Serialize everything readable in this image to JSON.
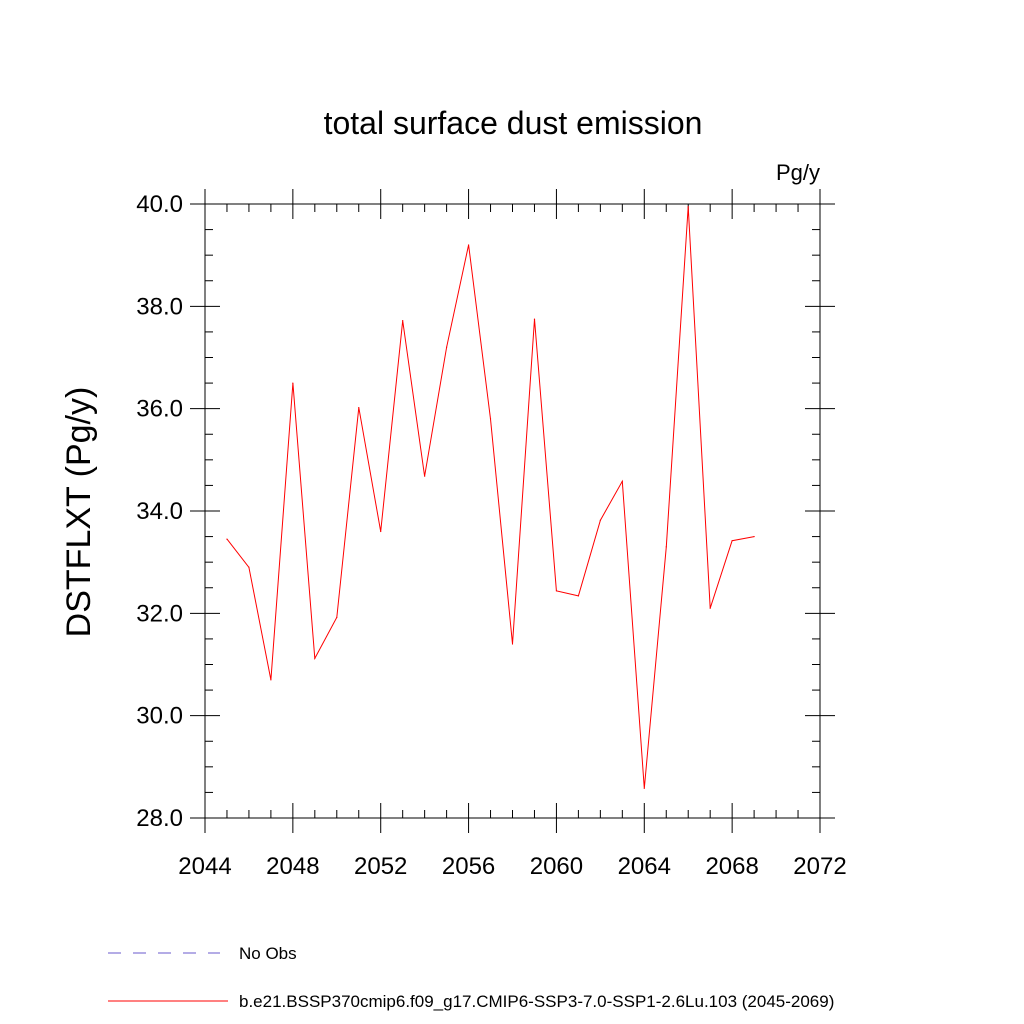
{
  "chart_data": {
    "type": "line",
    "title": "total surface dust emission",
    "units_label": "Pg/y",
    "ylabel": "DSTFLXT  (Pg/y)",
    "xlabel": "",
    "xlim": [
      2044,
      2072
    ],
    "ylim": [
      28.0,
      40.0
    ],
    "x_ticks": [
      2044,
      2048,
      2052,
      2056,
      2060,
      2064,
      2068,
      2072
    ],
    "y_ticks": [
      "28.0",
      "30.0",
      "32.0",
      "34.0",
      "36.0",
      "38.0",
      "40.0"
    ],
    "y_tick_values": [
      28,
      30,
      32,
      34,
      36,
      38,
      40
    ],
    "series": [
      {
        "name": "b.e21.BSSP370cmip6.f09_g17.CMIP6-SSP3-7.0-SSP1-2.6Lu.103 (2045-2069)",
        "color": "#ff0000",
        "style": "solid",
        "x": [
          2045,
          2046,
          2047,
          2048,
          2049,
          2050,
          2051,
          2052,
          2053,
          2054,
          2055,
          2056,
          2057,
          2058,
          2059,
          2060,
          2061,
          2062,
          2063,
          2064,
          2065,
          2066,
          2067,
          2068,
          2069
        ],
        "values": [
          33.45,
          32.9,
          30.7,
          36.5,
          31.12,
          31.92,
          36.02,
          33.6,
          37.72,
          34.68,
          37.2,
          39.2,
          35.8,
          31.4,
          37.75,
          32.44,
          32.34,
          33.82,
          34.58,
          28.58,
          33.3,
          39.95,
          32.1,
          33.42,
          33.5
        ]
      }
    ],
    "legend": [
      {
        "label": "No Obs",
        "color": "#6a5acd",
        "style": "dashed"
      },
      {
        "label": "b.e21.BSSP370cmip6.f09_g17.CMIP6-SSP3-7.0-SSP1-2.6Lu.103 (2045-2069)",
        "color": "#ff0000",
        "style": "solid"
      }
    ]
  }
}
